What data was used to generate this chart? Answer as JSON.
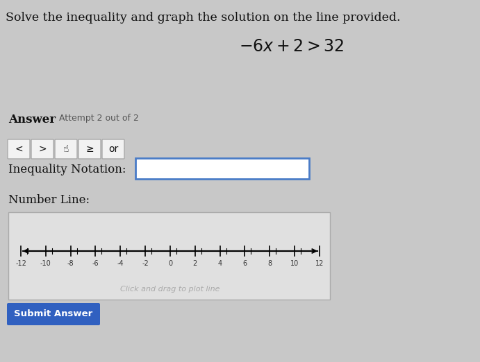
{
  "title": "Solve the inequality and graph the solution on the line provided.",
  "equation": "$-6x + 2 > 32$",
  "answer_label": "Answer",
  "attempt_label": "Attempt 2 out of 2",
  "inequality_label": "Inequality Notation:",
  "number_line_label": "Number Line:",
  "number_line_ticks": [
    -12,
    -10,
    -8,
    -6,
    -4,
    -2,
    0,
    2,
    4,
    6,
    8,
    10,
    12
  ],
  "number_line_hint": "Click and drag to plot line",
  "submit_label": "Submit Answer",
  "page_bg": "#c8c8c8",
  "content_bg": "#d4d4d4",
  "box_border": "#4a7cc7",
  "button_bg": "#f2f2f2",
  "button_border": "#aaaaaa",
  "submit_bg": "#3060c0",
  "submit_text": "#ffffff",
  "text_color": "#111111",
  "number_line_bg": "#e8e8e8",
  "number_line_border": "#aaaaaa",
  "hint_color": "#aaaaaa"
}
